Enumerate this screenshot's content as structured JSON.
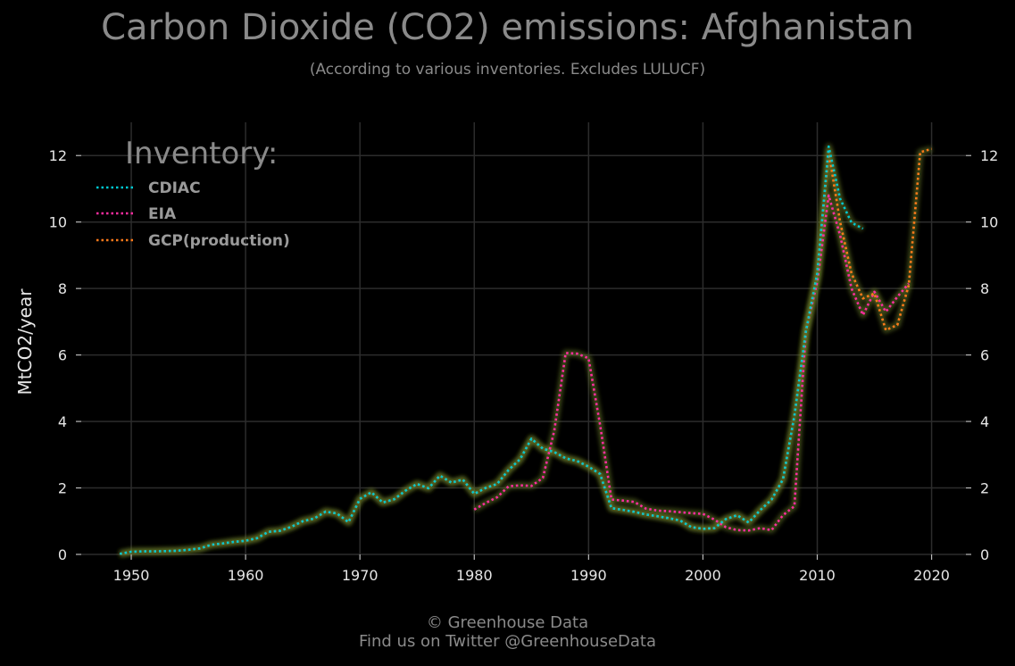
{
  "chart_data": {
    "type": "line",
    "title": "Carbon Dioxide (CO2) emissions: Afghanistan",
    "subtitle": "(According to various inventories. Excludes LULUCF)",
    "ylabel": "MtCO2/year",
    "xlabel": "",
    "xlim": [
      1945,
      2023
    ],
    "ylim": [
      0,
      13
    ],
    "x_ticks": [
      1950,
      1960,
      1970,
      1980,
      1990,
      2000,
      2010,
      2020
    ],
    "y_ticks": [
      0,
      2,
      4,
      6,
      8,
      10,
      12
    ],
    "grid": true,
    "legend_title": "Inventory:",
    "legend_position": "top-left",
    "series": [
      {
        "name": "CDIAC",
        "color": "#00c8d2",
        "points": [
          [
            1949,
            0.015
          ],
          [
            1950,
            0.08
          ],
          [
            1951,
            0.09
          ],
          [
            1952,
            0.09
          ],
          [
            1953,
            0.1
          ],
          [
            1954,
            0.11
          ],
          [
            1955,
            0.14
          ],
          [
            1956,
            0.18
          ],
          [
            1957,
            0.29
          ],
          [
            1958,
            0.33
          ],
          [
            1959,
            0.38
          ],
          [
            1960,
            0.41
          ],
          [
            1961,
            0.49
          ],
          [
            1962,
            0.68
          ],
          [
            1963,
            0.71
          ],
          [
            1964,
            0.83
          ],
          [
            1965,
            1.0
          ],
          [
            1966,
            1.08
          ],
          [
            1967,
            1.29
          ],
          [
            1968,
            1.23
          ],
          [
            1969,
            0.97
          ],
          [
            1970,
            1.67
          ],
          [
            1971,
            1.87
          ],
          [
            1972,
            1.56
          ],
          [
            1973,
            1.66
          ],
          [
            1974,
            1.92
          ],
          [
            1975,
            2.12
          ],
          [
            1976,
            1.99
          ],
          [
            1977,
            2.37
          ],
          [
            1978,
            2.16
          ],
          [
            1979,
            2.25
          ],
          [
            1980,
            1.82
          ],
          [
            1981,
            2.0
          ],
          [
            1982,
            2.12
          ],
          [
            1983,
            2.54
          ],
          [
            1984,
            2.86
          ],
          [
            1985,
            3.48
          ],
          [
            1986,
            3.18
          ],
          [
            1987,
            3.08
          ],
          [
            1988,
            2.89
          ],
          [
            1989,
            2.81
          ],
          [
            1990,
            2.64
          ],
          [
            1991,
            2.42
          ],
          [
            1992,
            1.39
          ],
          [
            1993,
            1.34
          ],
          [
            1994,
            1.28
          ],
          [
            1995,
            1.2
          ],
          [
            1996,
            1.15
          ],
          [
            1997,
            1.09
          ],
          [
            1998,
            1.02
          ],
          [
            1999,
            0.82
          ],
          [
            2000,
            0.77
          ],
          [
            2001,
            0.79
          ],
          [
            2002,
            1.06
          ],
          [
            2003,
            1.18
          ],
          [
            2004,
            0.96
          ],
          [
            2005,
            1.33
          ],
          [
            2006,
            1.65
          ],
          [
            2007,
            2.26
          ],
          [
            2008,
            4.17
          ],
          [
            2009,
            6.7
          ],
          [
            2010,
            8.45
          ],
          [
            2011,
            12.27
          ],
          [
            2012,
            10.7
          ],
          [
            2013,
            9.98
          ],
          [
            2014,
            9.8
          ]
        ]
      },
      {
        "name": "EIA",
        "color": "#ff2da0",
        "points": [
          [
            1980,
            1.35
          ],
          [
            1981,
            1.55
          ],
          [
            1982,
            1.72
          ],
          [
            1983,
            2.05
          ],
          [
            1984,
            2.08
          ],
          [
            1985,
            2.06
          ],
          [
            1986,
            2.3
          ],
          [
            1987,
            3.72
          ],
          [
            1988,
            6.06
          ],
          [
            1989,
            6.04
          ],
          [
            1990,
            5.9
          ],
          [
            1991,
            3.9
          ],
          [
            1992,
            1.65
          ],
          [
            1993,
            1.62
          ],
          [
            1994,
            1.58
          ],
          [
            1995,
            1.38
          ],
          [
            1996,
            1.32
          ],
          [
            1997,
            1.3
          ],
          [
            1998,
            1.27
          ],
          [
            1999,
            1.24
          ],
          [
            2000,
            1.22
          ],
          [
            2001,
            1.05
          ],
          [
            2002,
            0.82
          ],
          [
            2003,
            0.73
          ],
          [
            2004,
            0.72
          ],
          [
            2005,
            0.79
          ],
          [
            2006,
            0.73
          ],
          [
            2007,
            1.18
          ],
          [
            2008,
            1.45
          ],
          [
            2009,
            6.72
          ],
          [
            2010,
            8.2
          ],
          [
            2011,
            10.8
          ],
          [
            2012,
            9.6
          ],
          [
            2013,
            8.0
          ],
          [
            2014,
            7.2
          ],
          [
            2015,
            7.9
          ],
          [
            2016,
            7.3
          ],
          [
            2017,
            7.75
          ],
          [
            2018,
            8.15
          ]
        ]
      },
      {
        "name": "GCP(production)",
        "color": "#ff7a1a",
        "points": [
          [
            1949,
            0.015
          ],
          [
            1950,
            0.08
          ],
          [
            1951,
            0.09
          ],
          [
            1952,
            0.09
          ],
          [
            1953,
            0.1
          ],
          [
            1954,
            0.11
          ],
          [
            1955,
            0.14
          ],
          [
            1956,
            0.18
          ],
          [
            1957,
            0.29
          ],
          [
            1958,
            0.33
          ],
          [
            1959,
            0.38
          ],
          [
            1960,
            0.41
          ],
          [
            1961,
            0.49
          ],
          [
            1962,
            0.68
          ],
          [
            1963,
            0.71
          ],
          [
            1964,
            0.83
          ],
          [
            1965,
            1.0
          ],
          [
            1966,
            1.08
          ],
          [
            1967,
            1.29
          ],
          [
            1968,
            1.23
          ],
          [
            1969,
            0.97
          ],
          [
            1970,
            1.67
          ],
          [
            1971,
            1.87
          ],
          [
            1972,
            1.56
          ],
          [
            1973,
            1.66
          ],
          [
            1974,
            1.92
          ],
          [
            1975,
            2.12
          ],
          [
            1976,
            1.99
          ],
          [
            1977,
            2.37
          ],
          [
            1978,
            2.16
          ],
          [
            1979,
            2.25
          ],
          [
            1980,
            1.82
          ],
          [
            1981,
            2.0
          ],
          [
            1982,
            2.12
          ],
          [
            1983,
            2.54
          ],
          [
            1984,
            2.86
          ],
          [
            1985,
            3.48
          ],
          [
            1986,
            3.18
          ],
          [
            1987,
            3.08
          ],
          [
            1988,
            2.89
          ],
          [
            1989,
            2.81
          ],
          [
            1990,
            2.64
          ],
          [
            1991,
            2.42
          ],
          [
            1992,
            1.39
          ],
          [
            1993,
            1.34
          ],
          [
            1994,
            1.28
          ],
          [
            1995,
            1.2
          ],
          [
            1996,
            1.15
          ],
          [
            1997,
            1.09
          ],
          [
            1998,
            1.02
          ],
          [
            1999,
            0.82
          ],
          [
            2000,
            0.77
          ],
          [
            2001,
            0.79
          ],
          [
            2002,
            1.06
          ],
          [
            2003,
            1.18
          ],
          [
            2004,
            0.96
          ],
          [
            2005,
            1.33
          ],
          [
            2006,
            1.65
          ],
          [
            2007,
            2.26
          ],
          [
            2008,
            4.17
          ],
          [
            2009,
            6.7
          ],
          [
            2010,
            8.45
          ],
          [
            2011,
            12.12
          ],
          [
            2012,
            10.0
          ],
          [
            2013,
            8.45
          ],
          [
            2014,
            7.7
          ],
          [
            2015,
            7.85
          ],
          [
            2016,
            6.75
          ],
          [
            2017,
            6.9
          ],
          [
            2018,
            8.1
          ],
          [
            2019,
            12.1
          ],
          [
            2020,
            12.2
          ]
        ]
      }
    ]
  },
  "footer": {
    "line1": "© Greenhouse Data",
    "line2": "Find us on Twitter @GreenhouseData"
  }
}
